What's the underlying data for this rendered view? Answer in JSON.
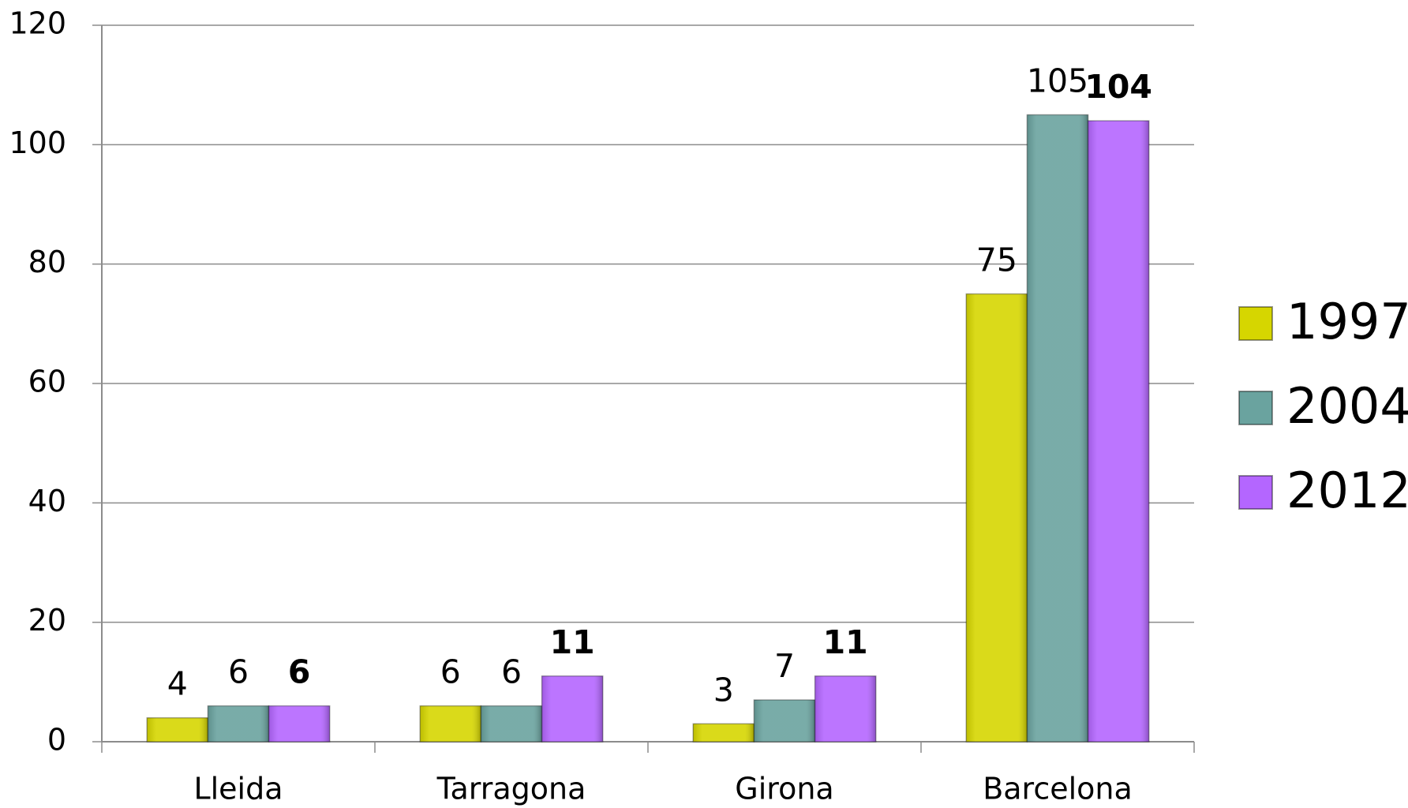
{
  "chart_data": {
    "type": "bar",
    "categories": [
      "Lleida",
      "Tarragona",
      "Girona",
      "Barcelona"
    ],
    "series": [
      {
        "name": "1997",
        "color": "#d6d600",
        "values": [
          4,
          6,
          3,
          75
        ]
      },
      {
        "name": "2004",
        "color": "#6aa39f",
        "values": [
          6,
          6,
          7,
          105
        ]
      },
      {
        "name": "2012",
        "color": "#b466ff",
        "values": [
          6,
          11,
          11,
          104
        ],
        "bold_labels": true
      }
    ],
    "ylim": [
      0,
      120
    ],
    "yticks": [
      0,
      20,
      40,
      60,
      80,
      100,
      120
    ],
    "grid": true,
    "legend": "right"
  }
}
